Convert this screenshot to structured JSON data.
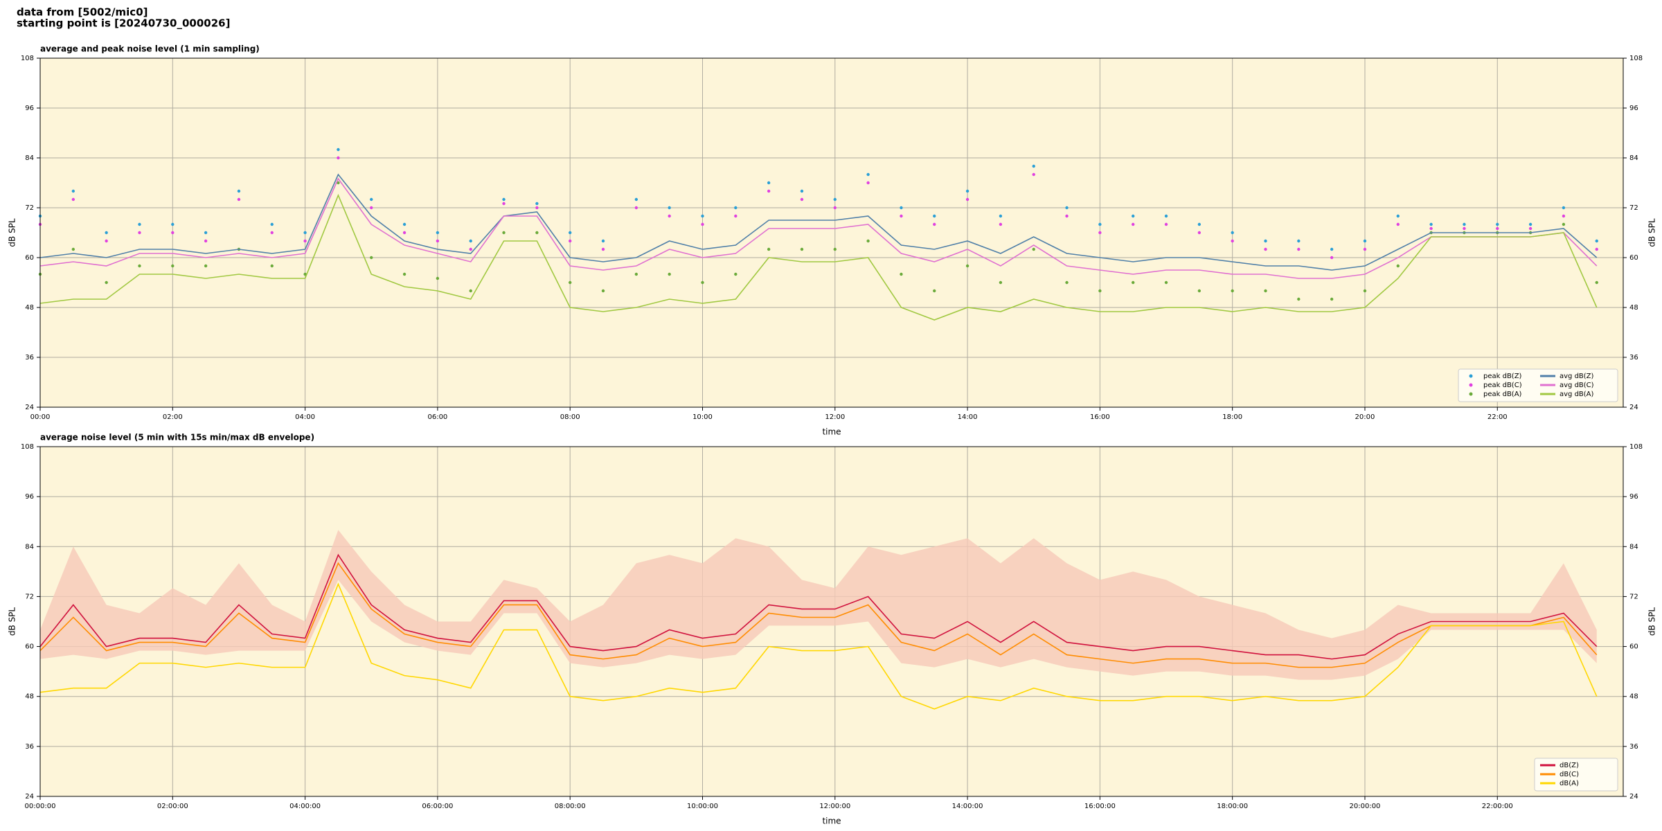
{
  "header": [
    "data from [5002/mic0]",
    "starting point is [20240730_000026]"
  ],
  "chart_data": [
    {
      "type": "line",
      "title": "average and peak noise level (1 min sampling)",
      "xlabel": "time",
      "ylabel": "dB SPL",
      "xlim": [
        0,
        23.9
      ],
      "ylim": [
        24,
        108
      ],
      "yticks": [
        24,
        36,
        48,
        60,
        72,
        84,
        96,
        108
      ],
      "xticks": [
        {
          "value": 0,
          "label": "00:00"
        },
        {
          "value": 2,
          "label": "02:00"
        },
        {
          "value": 4,
          "label": "04:00"
        },
        {
          "value": 6,
          "label": "06:00"
        },
        {
          "value": 8,
          "label": "08:00"
        },
        {
          "value": 10,
          "label": "10:00"
        },
        {
          "value": 12,
          "label": "12:00"
        },
        {
          "value": 14,
          "label": "14:00"
        },
        {
          "value": 16,
          "label": "16:00"
        },
        {
          "value": 18,
          "label": "18:00"
        },
        {
          "value": 20,
          "label": "20:00"
        },
        {
          "value": 22,
          "label": "22:00"
        }
      ],
      "grid": true,
      "legend": "lower right",
      "legend_columns": 2,
      "x": [
        0,
        0.5,
        1,
        1.5,
        2,
        2.5,
        3,
        3.5,
        4,
        4.5,
        5,
        5.5,
        6,
        6.5,
        7,
        7.5,
        8,
        8.5,
        9,
        9.5,
        10,
        10.5,
        11,
        11.5,
        12,
        12.5,
        13,
        13.5,
        14,
        14.5,
        15,
        15.5,
        16,
        16.5,
        17,
        17.5,
        18,
        18.5,
        19,
        19.5,
        20,
        20.5,
        21,
        21.5,
        22,
        22.5,
        23,
        23.5
      ],
      "series": [
        {
          "name": "peak dB(Z)",
          "color": "#2a9fd6",
          "style": "dots",
          "values": [
            70,
            76,
            66,
            68,
            68,
            66,
            76,
            68,
            66,
            86,
            74,
            68,
            66,
            64,
            74,
            73,
            66,
            64,
            74,
            72,
            70,
            72,
            78,
            76,
            74,
            80,
            72,
            70,
            76,
            70,
            82,
            72,
            68,
            70,
            70,
            68,
            66,
            64,
            64,
            62,
            64,
            70,
            68,
            68,
            68,
            68,
            72,
            64
          ]
        },
        {
          "name": "peak dB(C)",
          "color": "#e040e0",
          "style": "dots",
          "values": [
            68,
            74,
            64,
            66,
            66,
            64,
            74,
            66,
            64,
            84,
            72,
            66,
            64,
            62,
            73,
            72,
            64,
            62,
            72,
            70,
            68,
            70,
            76,
            74,
            72,
            78,
            70,
            68,
            74,
            68,
            80,
            70,
            66,
            68,
            68,
            66,
            64,
            62,
            62,
            60,
            62,
            68,
            67,
            67,
            67,
            67,
            70,
            62
          ]
        },
        {
          "name": "peak dB(A)",
          "color": "#6aaa3a",
          "style": "dots",
          "values": [
            56,
            62,
            54,
            58,
            58,
            58,
            62,
            58,
            56,
            78,
            60,
            56,
            55,
            52,
            66,
            66,
            54,
            52,
            56,
            56,
            54,
            56,
            62,
            62,
            62,
            64,
            56,
            52,
            58,
            54,
            62,
            54,
            52,
            54,
            54,
            52,
            52,
            52,
            50,
            50,
            52,
            58,
            66,
            66,
            66,
            66,
            68,
            54
          ]
        },
        {
          "name": "avg dB(Z)",
          "color": "#4f7fa8",
          "style": "line",
          "values": [
            60,
            61,
            60,
            62,
            62,
            61,
            62,
            61,
            62,
            80,
            70,
            64,
            62,
            61,
            70,
            71,
            60,
            59,
            60,
            64,
            62,
            63,
            69,
            69,
            69,
            70,
            63,
            62,
            64,
            61,
            65,
            61,
            60,
            59,
            60,
            60,
            59,
            58,
            58,
            57,
            58,
            62,
            66,
            66,
            66,
            66,
            67,
            60
          ]
        },
        {
          "name": "avg dB(C)",
          "color": "#e070d0",
          "style": "line",
          "values": [
            58,
            59,
            58,
            61,
            61,
            60,
            61,
            60,
            61,
            79,
            68,
            63,
            61,
            59,
            70,
            70,
            58,
            57,
            58,
            62,
            60,
            61,
            67,
            67,
            67,
            68,
            61,
            59,
            62,
            58,
            63,
            58,
            57,
            56,
            57,
            57,
            56,
            56,
            55,
            55,
            56,
            60,
            65,
            65,
            65,
            65,
            66,
            58
          ]
        },
        {
          "name": "avg dB(A)",
          "color": "#a0c840",
          "style": "line",
          "values": [
            49,
            50,
            50,
            56,
            56,
            55,
            56,
            55,
            55,
            75,
            56,
            53,
            52,
            50,
            64,
            64,
            48,
            47,
            48,
            50,
            49,
            50,
            60,
            59,
            59,
            60,
            48,
            45,
            48,
            47,
            50,
            48,
            47,
            47,
            48,
            48,
            47,
            48,
            47,
            47,
            48,
            55,
            65,
            65,
            65,
            65,
            66,
            48
          ]
        }
      ]
    },
    {
      "type": "line",
      "title": "average noise level (5 min with 15s min/max dB envelope)",
      "xlabel": "time",
      "ylabel": "dB SPL",
      "xlim": [
        0,
        23.9
      ],
      "ylim": [
        24,
        108
      ],
      "yticks": [
        24,
        36,
        48,
        60,
        72,
        84,
        96,
        108
      ],
      "xticks": [
        {
          "value": 0,
          "label": "00:00:00"
        },
        {
          "value": 2,
          "label": "02:00:00"
        },
        {
          "value": 4,
          "label": "04:00:00"
        },
        {
          "value": 6,
          "label": "06:00:00"
        },
        {
          "value": 8,
          "label": "08:00:00"
        },
        {
          "value": 10,
          "label": "10:00:00"
        },
        {
          "value": 12,
          "label": "12:00:00"
        },
        {
          "value": 14,
          "label": "14:00:00"
        },
        {
          "value": 16,
          "label": "16:00:00"
        },
        {
          "value": 18,
          "label": "18:00:00"
        },
        {
          "value": 20,
          "label": "20:00:00"
        },
        {
          "value": 22,
          "label": "22:00:00"
        }
      ],
      "grid": true,
      "legend": "lower right",
      "legend_columns": 1,
      "x": [
        0,
        0.5,
        1,
        1.5,
        2,
        2.5,
        3,
        3.5,
        4,
        4.5,
        5,
        5.5,
        6,
        6.5,
        7,
        7.5,
        8,
        8.5,
        9,
        9.5,
        10,
        10.5,
        11,
        11.5,
        12,
        12.5,
        13,
        13.5,
        14,
        14.5,
        15,
        15.5,
        16,
        16.5,
        17,
        17.5,
        18,
        18.5,
        19,
        19.5,
        20,
        20.5,
        21,
        21.5,
        22,
        22.5,
        23,
        23.5
      ],
      "envelope": {
        "color": "#f6c9b8",
        "high": [
          64,
          84,
          70,
          68,
          74,
          70,
          80,
          70,
          66,
          88,
          78,
          70,
          66,
          66,
          76,
          74,
          66,
          70,
          80,
          82,
          80,
          86,
          84,
          76,
          74,
          84,
          82,
          84,
          86,
          80,
          86,
          80,
          76,
          78,
          76,
          72,
          70,
          68,
          64,
          62,
          64,
          70,
          68,
          68,
          68,
          68,
          80,
          64
        ],
        "low": [
          57,
          58,
          57,
          59,
          59,
          58,
          59,
          59,
          59,
          76,
          66,
          61,
          59,
          58,
          68,
          68,
          56,
          55,
          56,
          58,
          57,
          58,
          65,
          65,
          65,
          66,
          56,
          55,
          57,
          55,
          57,
          55,
          54,
          53,
          54,
          54,
          53,
          53,
          52,
          52,
          53,
          57,
          64,
          64,
          64,
          64,
          64,
          56
        ]
      },
      "series": [
        {
          "name": "dB(Z)",
          "color": "#d0103c",
          "style": "line",
          "values": [
            60,
            70,
            60,
            62,
            62,
            61,
            70,
            63,
            62,
            82,
            70,
            64,
            62,
            61,
            71,
            71,
            60,
            59,
            60,
            64,
            62,
            63,
            70,
            69,
            69,
            72,
            63,
            62,
            66,
            61,
            66,
            61,
            60,
            59,
            60,
            60,
            59,
            58,
            58,
            57,
            58,
            63,
            66,
            66,
            66,
            66,
            68,
            60
          ]
        },
        {
          "name": "dB(C)",
          "color": "#ff8c00",
          "style": "line",
          "values": [
            59,
            67,
            59,
            61,
            61,
            60,
            68,
            62,
            61,
            80,
            69,
            63,
            61,
            60,
            70,
            70,
            58,
            57,
            58,
            62,
            60,
            61,
            68,
            67,
            67,
            70,
            61,
            59,
            63,
            58,
            63,
            58,
            57,
            56,
            57,
            57,
            56,
            56,
            55,
            55,
            56,
            61,
            65,
            65,
            65,
            65,
            67,
            58
          ]
        },
        {
          "name": "dB(A)",
          "color": "#ffd700",
          "style": "line",
          "values": [
            49,
            50,
            50,
            56,
            56,
            55,
            56,
            55,
            55,
            75,
            56,
            53,
            52,
            50,
            64,
            64,
            48,
            47,
            48,
            50,
            49,
            50,
            60,
            59,
            59,
            60,
            48,
            45,
            48,
            47,
            50,
            48,
            47,
            47,
            48,
            48,
            47,
            48,
            47,
            47,
            48,
            55,
            65,
            65,
            65,
            65,
            66,
            48
          ]
        }
      ]
    }
  ]
}
